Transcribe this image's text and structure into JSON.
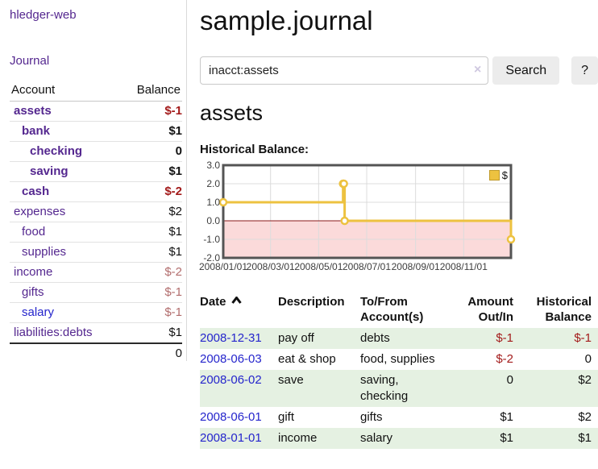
{
  "colors": {
    "link_purple": "#54278f",
    "link_blue": "#2525cc",
    "negative_strong": "#a31b1b",
    "negative_soft": "#b26d6d",
    "row_stripe_green": "#e5f1e2",
    "button_gray": "#ececec"
  },
  "sidebar": {
    "brand": "hledger-web",
    "nav_journal": "Journal",
    "accounts": {
      "headers": [
        "Account",
        "Balance"
      ],
      "rows": [
        {
          "name": "assets",
          "depth": 0,
          "bold": true,
          "balance": "$-1",
          "neg": "strong"
        },
        {
          "name": "bank",
          "depth": 1,
          "bold": true,
          "balance": "$1",
          "neg": "none"
        },
        {
          "name": "checking",
          "depth": 2,
          "bold": true,
          "balance": "0",
          "neg": "none"
        },
        {
          "name": "saving",
          "depth": 2,
          "bold": true,
          "balance": "$1",
          "neg": "none"
        },
        {
          "name": "cash",
          "depth": 1,
          "bold": true,
          "balance": "$-2",
          "neg": "strong"
        },
        {
          "name": "expenses",
          "depth": 0,
          "bold": false,
          "balance": "$2",
          "neg": "none"
        },
        {
          "name": "food",
          "depth": 1,
          "bold": false,
          "balance": "$1",
          "neg": "none"
        },
        {
          "name": "supplies",
          "depth": 1,
          "bold": false,
          "balance": "$1",
          "neg": "none"
        },
        {
          "name": "income",
          "depth": 0,
          "bold": false,
          "balance": "$-2",
          "neg": "soft"
        },
        {
          "name": "gifts",
          "depth": 1,
          "bold": false,
          "balance": "$-1",
          "neg": "soft"
        },
        {
          "name": "salary",
          "depth": 1,
          "bold": false,
          "balance": "$-1",
          "neg": "soft",
          "link_color": "blue"
        },
        {
          "name": "liabilities:debts",
          "depth": 0,
          "bold": false,
          "balance": "$1",
          "neg": "none"
        }
      ],
      "total": "0"
    }
  },
  "main": {
    "title": "sample.journal",
    "search": {
      "value": "inacct:assets",
      "clear": "×",
      "search_button": "Search",
      "help_button": "?"
    },
    "heading": "assets",
    "chart_title": "Historical Balance:"
  },
  "chart_data": {
    "type": "line",
    "step": true,
    "title": "Historical Balance:",
    "series": [
      {
        "name": "$",
        "points": [
          {
            "date": "2008-01-01",
            "value": 1
          },
          {
            "date": "2008-06-01",
            "value": 2
          },
          {
            "date": "2008-06-02",
            "value": 2
          },
          {
            "date": "2008-06-03",
            "value": 0
          },
          {
            "date": "2008-12-31",
            "value": -1
          }
        ]
      }
    ],
    "xlim": [
      "2008-01-01",
      "2008-12-31"
    ],
    "ylim": [
      -2,
      3
    ],
    "x_ticks": [
      {
        "date": "2008-01-01",
        "label": "2008/01/01"
      },
      {
        "date": "2008-03-01",
        "label": "2008/03/01"
      },
      {
        "date": "2008-05-01",
        "label": "2008/05/01"
      },
      {
        "date": "2008-07-01",
        "label": "2008/07/01"
      },
      {
        "date": "2008-09-01",
        "label": "2008/09/01"
      },
      {
        "date": "2008-11-01",
        "label": "2008/11/01"
      }
    ],
    "y_ticks": [
      {
        "value": 3,
        "label": "3.0"
      },
      {
        "value": 2,
        "label": "2.0"
      },
      {
        "value": 1,
        "label": "1.0"
      },
      {
        "value": 0,
        "label": "0.0"
      },
      {
        "value": -1,
        "label": "-1.0"
      },
      {
        "value": -2,
        "label": "-2.0"
      }
    ],
    "legend": {
      "label": "$",
      "position": "top-right"
    },
    "grid": true,
    "colors": {
      "line": "#edc240",
      "marker_fill": "#ffffff",
      "negative_region": "#fbdada",
      "zero_line": "#8b1a1a",
      "gridline": "#dcdcdc",
      "border": "#545454"
    }
  },
  "register": {
    "headers": {
      "date": "Date",
      "description": "Description",
      "tofrom": "To/From\nAccount(s)",
      "amount": "Amount\nOut/In",
      "balance": "Historical\nBalance"
    },
    "rows": [
      {
        "date": "2008-12-31",
        "description": "pay off",
        "accounts": "debts",
        "amount": "$-1",
        "amount_neg": true,
        "balance": "$-1",
        "balance_neg": true
      },
      {
        "date": "2008-06-03",
        "description": "eat & shop",
        "accounts": "food, supplies",
        "amount": "$-2",
        "amount_neg": true,
        "balance": "0",
        "balance_neg": false
      },
      {
        "date": "2008-06-02",
        "description": "save",
        "accounts": "saving, checking",
        "amount": "0",
        "amount_neg": false,
        "balance": "$2",
        "balance_neg": false
      },
      {
        "date": "2008-06-01",
        "description": "gift",
        "accounts": "gifts",
        "amount": "$1",
        "amount_neg": false,
        "balance": "$2",
        "balance_neg": false
      },
      {
        "date": "2008-01-01",
        "description": "income",
        "accounts": "salary",
        "amount": "$1",
        "amount_neg": false,
        "balance": "$1",
        "balance_neg": false
      }
    ]
  }
}
